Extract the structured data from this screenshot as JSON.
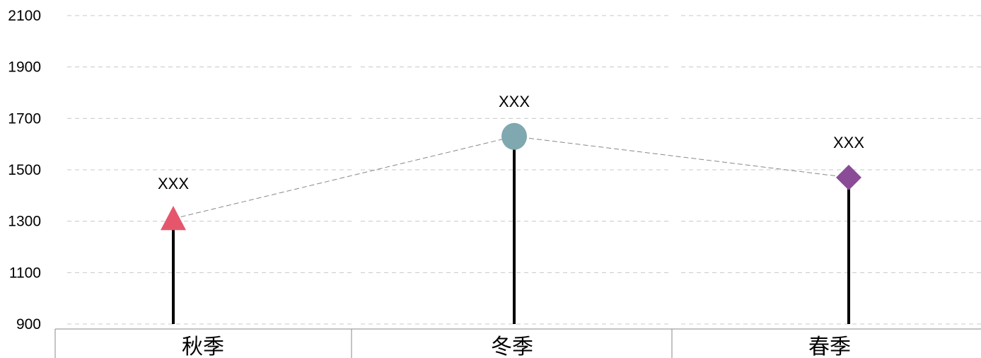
{
  "chart_data": {
    "type": "line",
    "title": "",
    "xlabel": "",
    "ylabel": "",
    "ylim": [
      900,
      2100
    ],
    "yticks": [
      2100,
      1900,
      1700,
      1500,
      1300,
      1100,
      900
    ],
    "grid": true,
    "legend": "none",
    "categories": [
      "秋季",
      "冬季",
      "春季"
    ],
    "series": [
      {
        "values": [
          1310,
          1630,
          1470
        ],
        "data_labels": [
          "XXX",
          "XXX",
          "XXX"
        ],
        "markers": [
          "triangle",
          "circle",
          "diamond"
        ],
        "colors": [
          "#e5566d",
          "#7fa8b0",
          "#8a4c96"
        ]
      }
    ],
    "stem_color": "#000000",
    "connector_color": "#888888"
  }
}
